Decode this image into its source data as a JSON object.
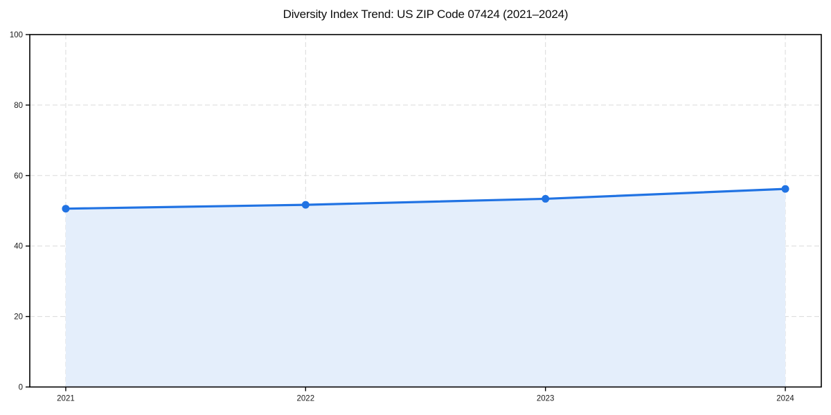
{
  "chart_data": {
    "type": "line",
    "title": "Diversity Index Trend: US ZIP Code 07424 (2021–2024)",
    "xlabel": "",
    "ylabel": "",
    "x": [
      2021,
      2022,
      2023,
      2024
    ],
    "series": [
      {
        "name": "Diversity Index",
        "values": [
          50.6,
          51.7,
          53.4,
          56.2
        ]
      }
    ],
    "xlim": [
      2020.85,
      2024.15
    ],
    "ylim": [
      0,
      100
    ],
    "xticks": [
      2021,
      2022,
      2023,
      2024
    ],
    "xticklabels": [
      "2021",
      "2022",
      "2023",
      "2024"
    ],
    "yticks": [
      0,
      20,
      40,
      60,
      80,
      100
    ],
    "yticklabels": [
      "0",
      "20",
      "40",
      "60",
      "80",
      "100"
    ],
    "grid": true,
    "grid_style": "dashed",
    "area_fill": true,
    "legend": "none",
    "colors": {
      "line": "#2173e3",
      "marker": "#2173e3",
      "area": "#e4eefb",
      "grid": "#dadada",
      "spine": "#000000",
      "tick_label": "#1a1a1a",
      "background": "#ffffff"
    }
  }
}
